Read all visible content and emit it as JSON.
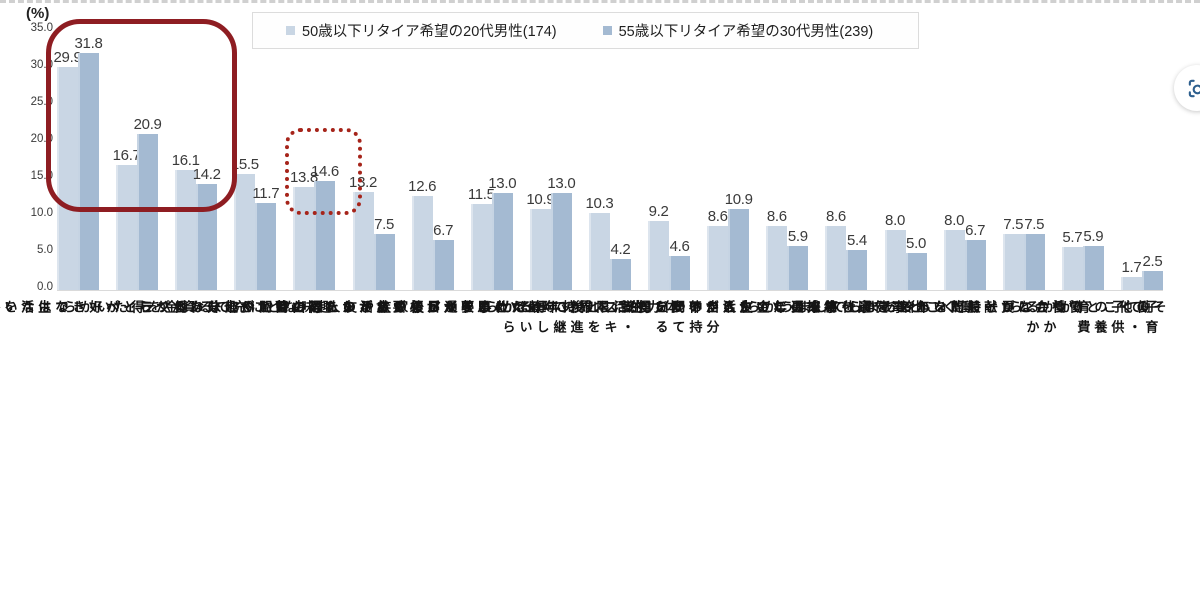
{
  "page": {
    "background": "#ffffff"
  },
  "chart_data": {
    "type": "bar",
    "unit_label": "(%)",
    "ylim": [
      0,
      35
    ],
    "ytick_step": 5.0,
    "ytick_labels": [
      "35.0",
      "30.0",
      "25.0",
      "20.0",
      "15.0",
      "10.0",
      "5.0",
      "0.0"
    ],
    "grid": false,
    "legend_position": "top",
    "categories": [
      "働くことが好きでは\nないから",
      "家族や友人との時間や\n趣味などプライベートな\n生活を充実させたいから",
      "趣味などに充てる資金を\n得たいから",
      "理由はとくにない",
      "リタイア後の生活の\nための蓄えが十分あるから",
      "仕事を通してやりがいを\n得たいから",
      "叶えたい夢や目標が\nあるから",
      "生活を維持するために\n収入が必要だから",
      "体力的に限界の年齢だと\n思うから",
      "自分の持っている知識・\nスキルを後進に継承したいから",
      "仕事を通じて友人や仲間を\n得ることができるから",
      "将来の年金生活が不安だから",
      "仕事を通じて成長して\nいきたいから",
      "働くことで健康を維持\nしたいから",
      "働かないと時間を\nもてあましてしまうから",
      "働くことが一般的な年齢だから",
      "働くことで社会に\n貢献したいから",
      "子育て・子供の養育費が\nかかるから",
      "その他"
    ],
    "series": [
      {
        "name": "50歳以下リタイア希望の20代男性(174)",
        "color": "#c9d6e4",
        "values": [
          29.9,
          16.7,
          16.1,
          15.5,
          13.8,
          13.2,
          12.6,
          11.5,
          10.9,
          10.3,
          9.2,
          8.6,
          8.6,
          8.6,
          8.0,
          8.0,
          7.5,
          5.7,
          1.7
        ]
      },
      {
        "name": "55歳以下リタイア希望の30代男性(239)",
        "color": "#a4bad2",
        "values": [
          31.8,
          20.9,
          14.2,
          11.7,
          14.6,
          7.5,
          6.7,
          13.0,
          13.0,
          4.2,
          4.6,
          10.9,
          5.9,
          5.4,
          5.0,
          6.7,
          7.5,
          5.9,
          2.5
        ]
      }
    ],
    "annotations": [
      {
        "type": "rounded-rect-solid",
        "target": "top-3-categories",
        "color": "#8e1d22"
      },
      {
        "type": "rounded-rect-dotted",
        "target": "リタイア後の生活のための蓄えが十分あるから",
        "color": "#a6241a"
      }
    ]
  },
  "overlay": {
    "image_search_button": {
      "icon": "lens-viewfinder-icon",
      "color": "#2d5f8e"
    }
  }
}
